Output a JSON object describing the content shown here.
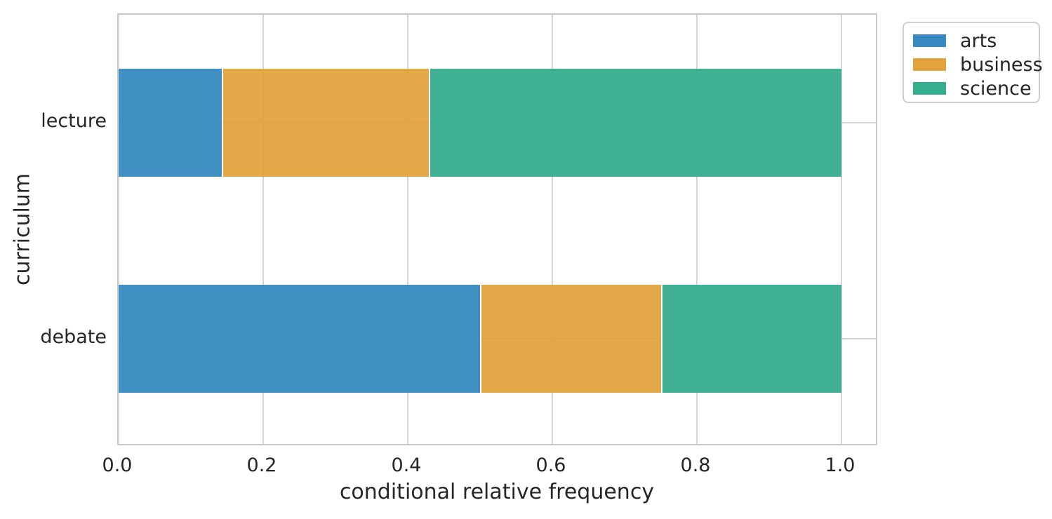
{
  "chart_data": {
    "type": "bar",
    "orientation": "horizontal",
    "stacked": true,
    "xlabel": "conditional relative frequency",
    "ylabel": "curriculum",
    "categories": [
      "lecture",
      "debate"
    ],
    "series": [
      {
        "name": "arts",
        "color": "#3589c0",
        "values": [
          0.143,
          0.5
        ]
      },
      {
        "name": "business",
        "color": "#e2a33c",
        "values": [
          0.286,
          0.25
        ]
      },
      {
        "name": "science",
        "color": "#35ae8d",
        "values": [
          0.571,
          0.25
        ]
      }
    ],
    "xticks": [
      {
        "value": 0.0,
        "label": "0.0"
      },
      {
        "value": 0.2,
        "label": "0.2"
      },
      {
        "value": 0.4,
        "label": "0.4"
      },
      {
        "value": 0.6,
        "label": "0.6"
      },
      {
        "value": 0.8,
        "label": "0.8"
      },
      {
        "value": 1.0,
        "label": "1.0"
      }
    ],
    "xlim": [
      0,
      1.05
    ],
    "grid": true,
    "legend_position": "upper-right-outside"
  },
  "colors": {
    "grid": "#d5d5d5",
    "spine": "#c9c9c9",
    "text": "#262626",
    "segment_divider": "#ffffff"
  }
}
